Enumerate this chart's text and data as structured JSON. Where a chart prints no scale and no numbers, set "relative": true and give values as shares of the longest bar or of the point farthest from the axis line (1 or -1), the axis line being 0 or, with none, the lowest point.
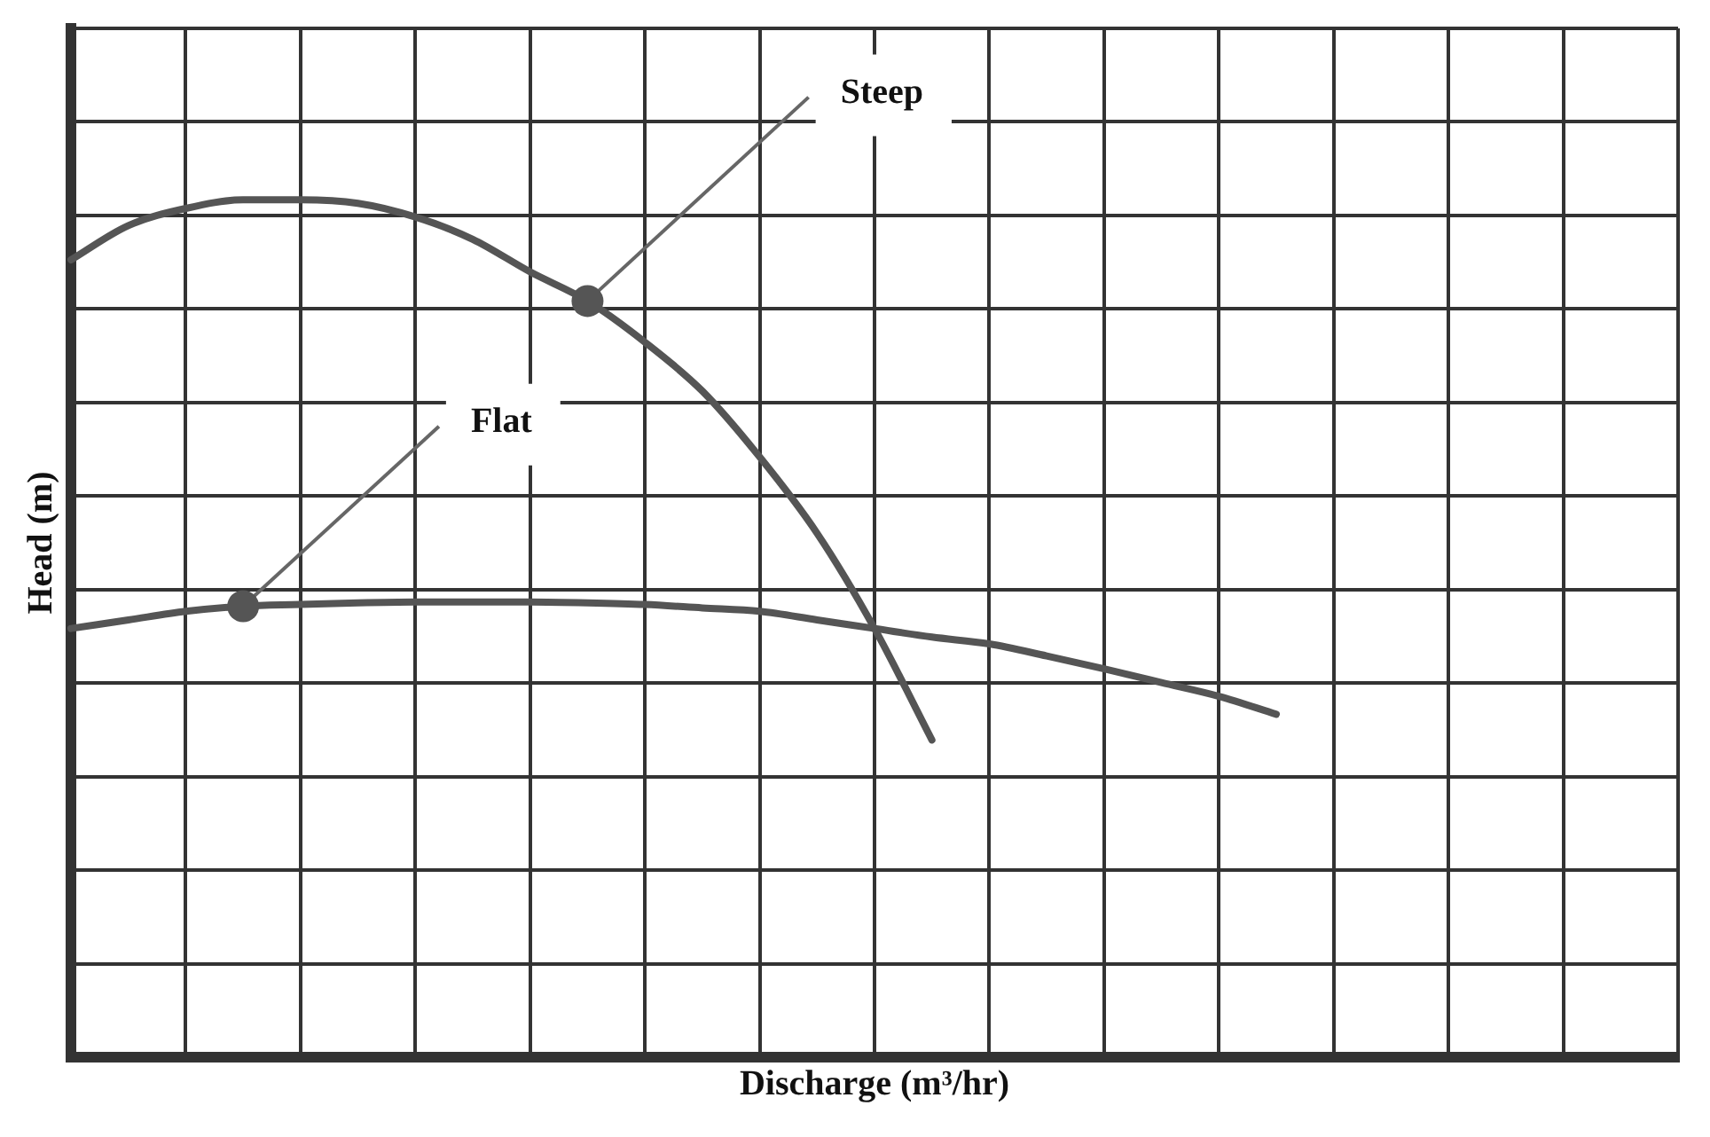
{
  "chart_data": {
    "type": "line",
    "relative": true,
    "xlabel": "Discharge (m³/hr)",
    "ylabel": "Head (m)",
    "categories": [
      null,
      null,
      null,
      null,
      null,
      null,
      null,
      null,
      null,
      null,
      null,
      null,
      null,
      null,
      null,
      null,
      null,
      null,
      null,
      null,
      null,
      null,
      null,
      null,
      null,
      null,
      null,
      null,
      null
    ],
    "series": [
      {
        "color": "#555555",
        "values": [
          0.93,
          0.97,
          0.99,
          1.0,
          1.0,
          0.996,
          0.98,
          0.954,
          0.916,
          0.882,
          0.834,
          0.777,
          0.7,
          0.611,
          0.5,
          0.37,
          null,
          null,
          null,
          null,
          null,
          null,
          null,
          null,
          null,
          null,
          null,
          null,
          null
        ]
      },
      {
        "color": "#555555",
        "values": [
          0.5,
          0.51,
          0.52,
          0.526,
          0.528,
          0.53,
          0.531,
          0.531,
          0.531,
          0.53,
          0.528,
          0.524,
          0.52,
          0.51,
          0.5,
          0.49,
          0.482,
          0.468,
          0.453,
          0.437,
          0.421,
          0.4,
          null,
          null,
          null,
          null,
          null,
          null,
          null
        ]
      }
    ],
    "annotations": [
      "Steep",
      "Flat"
    ],
    "grid": true,
    "tick_labels": false,
    "marker": "none",
    "line_style": "solid",
    "legend": false
  }
}
